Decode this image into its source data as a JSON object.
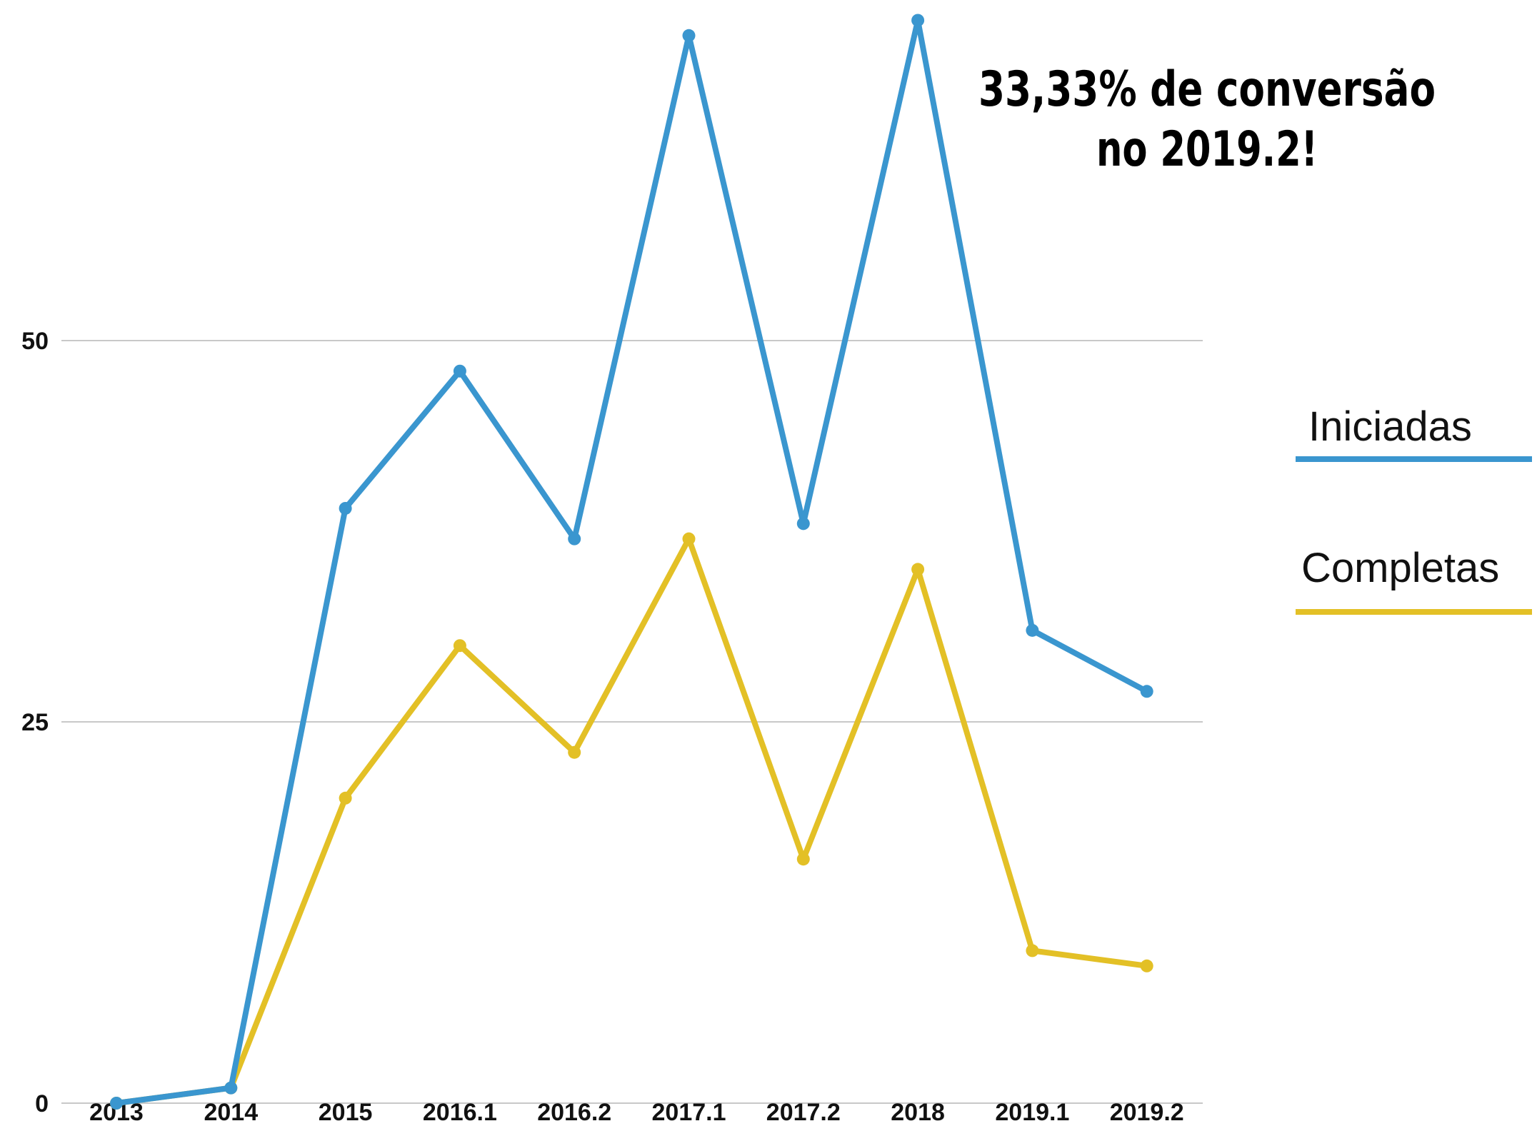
{
  "chart_data": {
    "type": "line",
    "categories": [
      "2013",
      "2014",
      "2015",
      "2016.1",
      "2016.2",
      "2017.1",
      "2017.2",
      "2018",
      "2019.1",
      "2019.2"
    ],
    "series": [
      {
        "name": "Iniciadas",
        "color": "#3a96cf",
        "values": [
          0,
          1,
          39,
          48,
          37,
          70,
          38,
          71,
          31,
          27
        ]
      },
      {
        "name": "Completas",
        "color": "#e3c026",
        "values": [
          0,
          1,
          20,
          30,
          23,
          37,
          16,
          35,
          10,
          9
        ]
      }
    ],
    "yticks": [
      0,
      25,
      50
    ],
    "ylim": [
      0,
      72
    ],
    "grid": true,
    "legend_position": "right",
    "annotation": [
      "33,33% de conversão",
      "no 2019.2!"
    ]
  }
}
